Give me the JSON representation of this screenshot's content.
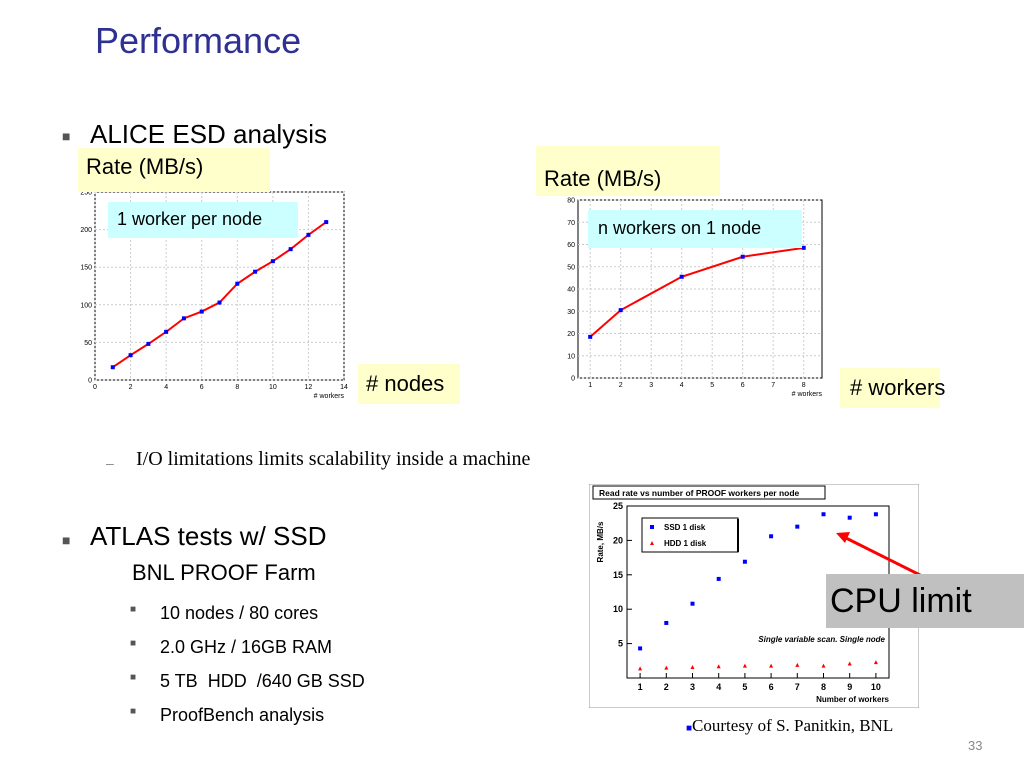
{
  "slide": {
    "title": "Performance",
    "page_number": "33",
    "bullet1": "ALICE ESD analysis",
    "sub1": "I/O limitations limits scalability inside a machine",
    "bullet2": "ATLAS tests w/ SSD",
    "bullet2_sub": "BNL PROOF Farm",
    "items": [
      "10 nodes / 80 cores",
      "2.0 GHz / 16GB RAM",
      "5 TB  HDD  /640 GB SSD",
      "ProofBench analysis"
    ],
    "courtesy": "Courtesy of S. Panitkin, BNL",
    "cpu_limit": "CPU limit"
  },
  "chart1": {
    "ylabel_box": "Rate (MB/s)",
    "xlabel_box": "# nodes",
    "note": "1 worker per node"
  },
  "chart2": {
    "ylabel_box": "Rate (MB/s)",
    "xlabel_box": "# workers",
    "note": "n workers on 1 node"
  },
  "chart_data": [
    {
      "type": "line",
      "xlabel": "# workers",
      "xlim": [
        0,
        14
      ],
      "ylim": [
        0,
        250
      ],
      "xticks": [
        0,
        2,
        4,
        6,
        8,
        10,
        12,
        14
      ],
      "yticks": [
        0,
        50,
        100,
        150,
        200,
        250
      ],
      "grid": true,
      "x": [
        1,
        2,
        3,
        4,
        5,
        6,
        7,
        8,
        9,
        10,
        11,
        12,
        13
      ],
      "y": [
        17,
        33,
        48,
        64,
        82,
        91,
        103,
        128,
        144,
        158,
        174,
        193,
        210
      ],
      "color": "#ff0000",
      "marker_color": "#0000ff"
    },
    {
      "type": "line",
      "xlabel": "# workers",
      "xlim": [
        0.6,
        8.6
      ],
      "ylim": [
        0,
        80
      ],
      "xticks": [
        1,
        2,
        3,
        4,
        5,
        6,
        7,
        8
      ],
      "yticks": [
        0,
        10,
        20,
        30,
        40,
        50,
        60,
        70,
        80
      ],
      "grid": true,
      "x": [
        1,
        2,
        4,
        6,
        8
      ],
      "y": [
        18.5,
        30.5,
        45.5,
        54.5,
        58.5
      ],
      "color": "#ff0000",
      "marker_color": "#0000ff"
    },
    {
      "type": "scatter",
      "title": "Read rate vs number of PROOF workers per node",
      "xlabel": "Number of workers",
      "ylabel": "Rate, MB/s",
      "xlim": [
        0.5,
        10.5
      ],
      "ylim": [
        0,
        25
      ],
      "xticks": [
        1,
        2,
        3,
        4,
        5,
        6,
        7,
        8,
        9,
        10
      ],
      "yticks": [
        5,
        10,
        15,
        20,
        25
      ],
      "annotation": "Single variable scan. Single node",
      "series": [
        {
          "name": "SSD 1 disk",
          "color": "#0000ff",
          "marker": "square",
          "x": [
            1,
            2,
            3,
            4,
            5,
            6,
            7,
            8,
            9,
            10
          ],
          "y": [
            4.3,
            8,
            10.8,
            14.4,
            16.9,
            20.6,
            22,
            23.8,
            23.3,
            23.8
          ]
        },
        {
          "name": "HDD 1 disk",
          "color": "#ff0000",
          "marker": "triangle",
          "x": [
            1,
            2,
            3,
            4,
            5,
            6,
            7,
            8,
            9,
            10
          ],
          "y": [
            1.4,
            1.5,
            1.6,
            1.7,
            1.8,
            1.8,
            1.9,
            1.8,
            2.1,
            2.3
          ]
        }
      ]
    }
  ]
}
